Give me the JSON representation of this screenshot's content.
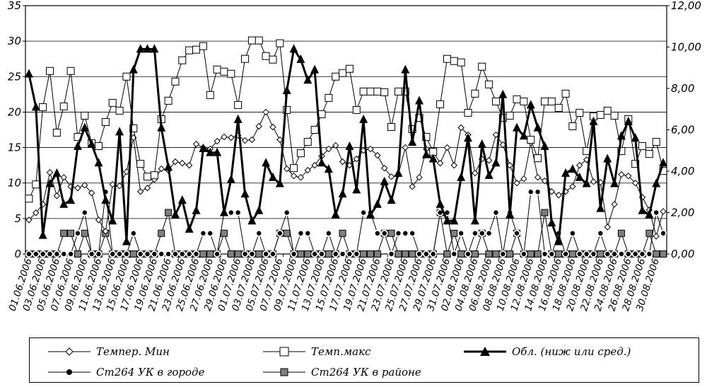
{
  "chart_data": {
    "type": "line",
    "x": [
      "01.06.2006",
      "02.06.2006",
      "03.06.2006",
      "04.06.2006",
      "05.06.2006",
      "06.06.2006",
      "07.06.2006",
      "08.06.2006",
      "09.06.2006",
      "10.06.2006",
      "11.06.2006",
      "12.06.2006",
      "13.06.2006",
      "14.06.2006",
      "15.06.2006",
      "16.06.2006",
      "17.06.2006",
      "18.06.2006",
      "19.06.2006",
      "20.06.2006",
      "21.06.2006",
      "22.06.2006",
      "23.06.2006",
      "24.06.2006",
      "25.06.2006",
      "26.06.2006",
      "27.06.2006",
      "28.06.2006",
      "29.06.2006",
      "30.06.2006",
      "01.07.2006",
      "02.07.2006",
      "03.07.2006",
      "04.07.2006",
      "05.07.2006",
      "06.07.2006",
      "07.07.2006",
      "08.07.2006",
      "09.07.2006",
      "10.07.2006",
      "11.07.2006",
      "12.07.2006",
      "13.07.2006",
      "14.07.2006",
      "15.07.2006",
      "16.07.2006",
      "17.07.2006",
      "18.07.2006",
      "19.07.2006",
      "20.07.2006",
      "21.07.2006",
      "22.07.2006",
      "23.07.2006",
      "24.07.2006",
      "25.07.2006",
      "26.07.2006",
      "27.07.2006",
      "28.07.2006",
      "29.07.2006",
      "30.07.2006",
      "31.07.2006",
      "01.08.2006",
      "02.08.2006",
      "03.08.2006",
      "04.08.2006",
      "05.08.2006",
      "06.08.2006",
      "07.08.2006",
      "08.08.2006",
      "09.08.2006",
      "10.08.2006",
      "11.08.2006",
      "12.08.2006",
      "13.08.2006",
      "14.08.2006",
      "15.08.2006",
      "16.08.2006",
      "17.08.2006",
      "18.08.2006",
      "19.08.2006",
      "20.08.2006",
      "21.08.2006",
      "22.08.2006",
      "23.08.2006",
      "24.08.2006",
      "25.08.2006",
      "26.08.2006",
      "27.08.2006",
      "28.08.2006",
      "29.08.2006",
      "30.08.2006",
      "31.08.2006"
    ],
    "x_tick_labels": [
      "01.06.2006",
      "03.06.2006",
      "05.06.2006",
      "07.06.2006",
      "09.06.2006",
      "11.06.2006",
      "13.06.2006",
      "15.06.2006",
      "17.06.2006",
      "19.06.2006",
      "21.06.2006",
      "23.06.2006",
      "25.06.2006",
      "27.06.2006",
      "29.06.2006",
      "01.07.2006",
      "03.07.2006",
      "05.07.2006",
      "07.07.2006",
      "09.07.2006",
      "11.07.2006",
      "13.07.2006",
      "15.07.2006",
      "17.07.2006",
      "19.07.2006",
      "21.07.2006",
      "23.07.2006",
      "25.07.2006",
      "27.07.2006",
      "29.07.2006",
      "31.07.2006",
      "02.08.2006",
      "04.08.2006",
      "06.08.2006",
      "08.08.2006",
      "10.08.2006",
      "12.08.2006",
      "14.08.2006",
      "16.08.2006",
      "18.08.2006",
      "20.08.2006",
      "22.08.2006",
      "24.08.2006",
      "26.08.2006",
      "28.08.2006",
      "30.08.2006"
    ],
    "y_left": {
      "ylim": [
        0,
        35
      ],
      "ticks": [
        "0",
        "5",
        "10",
        "15",
        "20",
        "25",
        "30",
        "35"
      ]
    },
    "y_right": {
      "ylim": [
        0,
        12
      ],
      "ticks": [
        "0,00",
        "2,00",
        "4,00",
        "6,00",
        "8,00",
        "10,00",
        "12,00"
      ]
    },
    "grid": true,
    "legend_position": "bottom",
    "series": [
      {
        "name": "Темпер. Мин",
        "axis": "left",
        "color": "#000000",
        "marker": "diamond",
        "line_width": 1,
        "values": [
          4.8,
          5.8,
          7,
          11.5,
          8.2,
          10.8,
          9.5,
          9.3,
          9.7,
          8.6,
          4.8,
          3.2,
          9.8,
          9.6,
          11.6,
          16.4,
          8.8,
          9.3,
          10.5,
          12,
          11.8,
          13,
          12.8,
          12.5,
          15.5,
          15,
          14.8,
          15.9,
          16.5,
          16.4,
          16.7,
          16,
          16.1,
          18,
          20,
          17.9,
          16.1,
          12,
          11,
          10.8,
          11.8,
          12.5,
          13.8,
          14.8,
          15.3,
          13,
          12.5,
          13.4,
          14.6,
          14.8,
          13.9,
          12.1,
          10.9,
          11.2,
          15,
          9.5,
          10.8,
          14.8,
          14.4,
          12.8,
          15,
          12.5,
          17.8,
          16.8,
          11.4,
          13.4,
          13.2,
          16.8,
          15.4,
          12.5,
          10,
          10.6,
          15.7,
          10.8,
          10.3,
          8.8,
          8.3,
          8.8,
          9.5,
          12.5,
          13.3,
          10.2,
          10.1,
          3.8,
          7,
          11.2,
          11,
          10,
          8,
          6.2,
          2.5,
          6
        ]
      },
      {
        "name": "Темп.макс",
        "axis": "left",
        "color": "#000000",
        "marker": "square",
        "line_width": 1,
        "values": [
          7.8,
          9.8,
          20.7,
          25.8,
          17.1,
          20.8,
          25.8,
          16.5,
          19.5,
          15.6,
          15.2,
          18.6,
          21.3,
          20.2,
          25,
          17.7,
          12.7,
          10.9,
          11.1,
          19,
          21.6,
          24.3,
          27.3,
          28.7,
          28.8,
          29.3,
          22.4,
          26,
          25.7,
          25.4,
          21,
          27.5,
          30.1,
          30.1,
          27.9,
          27.4,
          29.7,
          20.3,
          12.1,
          14.2,
          15.8,
          17.5,
          19.7,
          22,
          25,
          25.5,
          26.1,
          20.3,
          22.9,
          22.9,
          22.9,
          22.8,
          17.9,
          22.9,
          22.9,
          17.6,
          19.2,
          16.5,
          14.4,
          21.1,
          27.5,
          27.2,
          27,
          19.9,
          22.6,
          26.4,
          23.9,
          21.5,
          19.2,
          19.5,
          21.8,
          21.5,
          16.1,
          13.5,
          21.5,
          21.5,
          20.6,
          22.6,
          18,
          19.9,
          14.5,
          19.4,
          19.6,
          20.2,
          19.5,
          14.5,
          19,
          12.7,
          15.2,
          14.1,
          15.8,
          11.7
        ]
      },
      {
        "name": "Обл. (ниж или сред.)",
        "axis": "right",
        "color": "#000000",
        "marker": "triangle",
        "line_width": 3,
        "values": [
          8.7,
          7.1,
          0.9,
          3.4,
          3.9,
          2.4,
          2.6,
          5.2,
          6.1,
          5.3,
          4.4,
          2.6,
          1.6,
          5.9,
          0.6,
          8.9,
          9.9,
          9.9,
          9.9,
          6.1,
          4.2,
          1.9,
          2.6,
          1.2,
          2.1,
          5.1,
          4.9,
          4.9,
          2,
          3.6,
          6.5,
          2.9,
          1.6,
          2.1,
          4.4,
          3.7,
          3.4,
          7.9,
          9.9,
          9.4,
          8.4,
          8.9,
          4.4,
          4.1,
          1.9,
          2.9,
          5.2,
          3.1,
          6.5,
          1.9,
          2.4,
          3.5,
          2.6,
          3.9,
          8.9,
          5.4,
          7.4,
          4.8,
          4.6,
          2.4,
          1.6,
          1.6,
          3.7,
          5.6,
          1.6,
          5.3,
          3.8,
          4.4,
          7.7,
          1.9,
          6.1,
          5.7,
          7.2,
          6.1,
          5.2,
          1.5,
          0.6,
          3.9,
          4.1,
          3.7,
          3.4,
          6.4,
          2.2,
          4.6,
          3.4,
          5.7,
          6.4,
          5.6,
          2.1,
          1.9,
          3.4,
          4.4
        ]
      },
      {
        "name": "Ст264 УК в городе",
        "axis": "right",
        "color": "#000000",
        "marker": "circle",
        "line_width": 1,
        "values": [
          0,
          0,
          0,
          0,
          0,
          0,
          0,
          1,
          2,
          0,
          0,
          3,
          0,
          0,
          0,
          1,
          0,
          0,
          0,
          0,
          0,
          0,
          0,
          0,
          0,
          1,
          1,
          0,
          2,
          2,
          2,
          0,
          0,
          1,
          0,
          0,
          1,
          2,
          0,
          1,
          1,
          0,
          0,
          1,
          0,
          0,
          0,
          0,
          2,
          2,
          1,
          1,
          0,
          1,
          1,
          1,
          0,
          0,
          0,
          2,
          2,
          0,
          1,
          0,
          1,
          1,
          1,
          2,
          0,
          2,
          1,
          0,
          3,
          3,
          0,
          0,
          1,
          0,
          1,
          0,
          0,
          0,
          1,
          0,
          0,
          0,
          0,
          0,
          0,
          0,
          2,
          1
        ]
      },
      {
        "name": "Ст264 УК в районе",
        "axis": "right",
        "color": "#7f7f7f",
        "marker": "square",
        "line_width": 1,
        "values": [
          0,
          0,
          0,
          0,
          0,
          1,
          1,
          0,
          1,
          0,
          0,
          1,
          0,
          0,
          0,
          0,
          0,
          0,
          0,
          1,
          2,
          0,
          0,
          0,
          0,
          0,
          0,
          0,
          1,
          0,
          0,
          0,
          0,
          0,
          0,
          0,
          1,
          1,
          0,
          0,
          0,
          0,
          0,
          0,
          0,
          1,
          0,
          0,
          0,
          0,
          0,
          1,
          1,
          0,
          0,
          0,
          0,
          0,
          0,
          2,
          0,
          1,
          0,
          0,
          0,
          1,
          0,
          0,
          0,
          0,
          1,
          0,
          0,
          0,
          2,
          0,
          0,
          0,
          0,
          0,
          0,
          0,
          0,
          0,
          0,
          1,
          0,
          0,
          0,
          1,
          0,
          0
        ]
      }
    ]
  }
}
